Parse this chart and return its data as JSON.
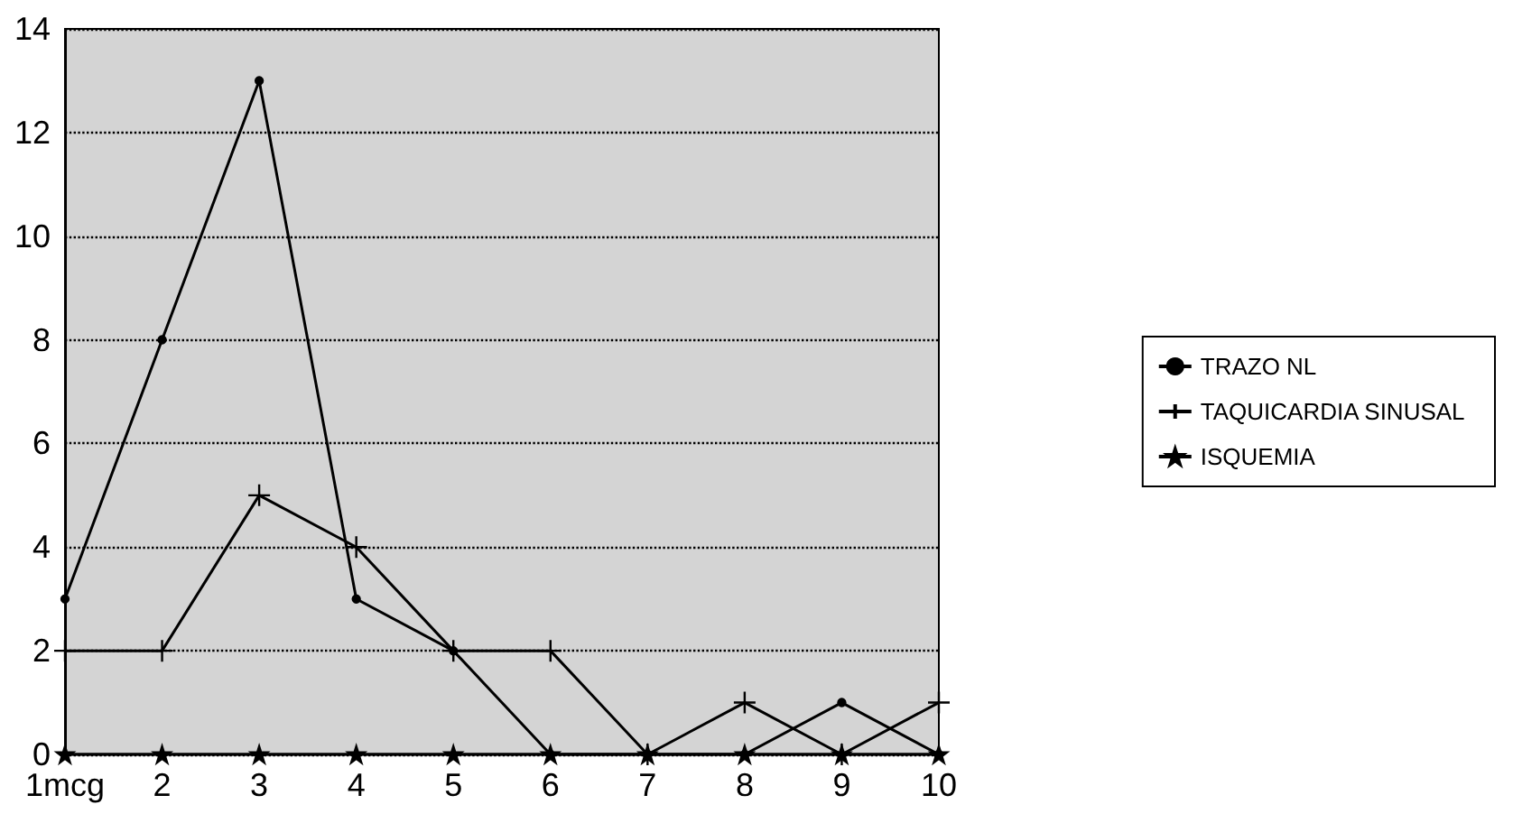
{
  "chart_data": {
    "type": "line",
    "categories": [
      "1mcg",
      "2",
      "3",
      "4",
      "5",
      "6",
      "7",
      "8",
      "9",
      "10"
    ],
    "series": [
      {
        "name": "TRAZO NL",
        "color": "#000000",
        "marker": "circle",
        "values": [
          3,
          8,
          13,
          3,
          2,
          0,
          0,
          0,
          1,
          0
        ]
      },
      {
        "name": "TAQUICARDIA SINUSAL",
        "color": "#000000",
        "marker": "cross",
        "values": [
          2,
          2,
          5,
          4,
          2,
          2,
          0,
          1,
          0,
          1
        ]
      },
      {
        "name": "ISQUEMIA",
        "color": "#000000",
        "marker": "star",
        "values": [
          0,
          0,
          0,
          0,
          0,
          0,
          0,
          0,
          0,
          0
        ]
      }
    ],
    "ylim": [
      0,
      14
    ],
    "yticks": [
      0,
      2,
      4,
      6,
      8,
      10,
      12,
      14
    ],
    "grid": "y",
    "legend": "right",
    "line_style": "solid"
  }
}
